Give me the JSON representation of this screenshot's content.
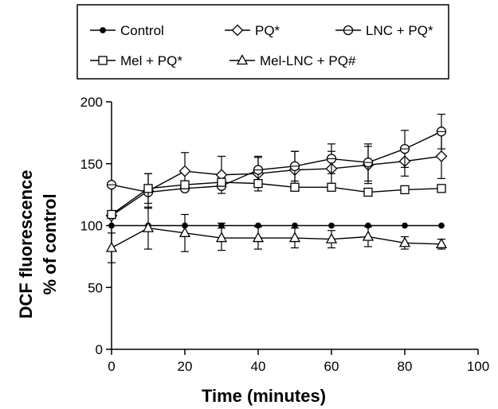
{
  "chart_data": {
    "type": "line",
    "title": "",
    "xlabel": "Time (minutes)",
    "ylabel": [
      "DCF fluorescence",
      "% of control"
    ],
    "xlim": [
      0,
      100
    ],
    "ylim": [
      0,
      200
    ],
    "xticks": [
      0,
      20,
      40,
      60,
      80,
      100
    ],
    "yticks": [
      0,
      50,
      100,
      150,
      200
    ],
    "grid": false,
    "legend_position": "top",
    "x": [
      0,
      10,
      20,
      30,
      40,
      50,
      60,
      70,
      80,
      90
    ],
    "series": [
      {
        "name": "Control",
        "marker": "filled-circle",
        "values": [
          100,
          100,
          100,
          100,
          100,
          100,
          100,
          100,
          100,
          100
        ],
        "errors": [
          0,
          0,
          0,
          2,
          0,
          0,
          0,
          0,
          0,
          0
        ]
      },
      {
        "name": "PQ*",
        "marker": "diamond",
        "values": [
          108,
          128,
          144,
          141,
          142,
          145,
          146,
          149,
          152,
          156
        ],
        "errors": [
          0,
          14,
          15,
          15,
          14,
          15,
          14,
          15,
          12,
          18
        ]
      },
      {
        "name": "LNC + PQ*",
        "marker": "circle",
        "values": [
          133,
          127,
          130,
          132,
          145,
          148,
          154,
          151,
          162,
          176
        ],
        "errors": [
          0,
          0,
          0,
          0,
          10,
          12,
          12,
          15,
          15,
          14
        ]
      },
      {
        "name": "Mel + PQ*",
        "marker": "square",
        "values": [
          109,
          130,
          133,
          135,
          134,
          131,
          131,
          127,
          129,
          130
        ],
        "errors": [
          0,
          12,
          0,
          0,
          0,
          0,
          0,
          0,
          0,
          0
        ]
      },
      {
        "name": "Mel-LNC + PQ#",
        "marker": "triangle",
        "values": [
          82,
          98,
          94,
          90,
          90,
          90,
          89,
          91,
          86,
          85
        ],
        "errors": [
          12,
          17,
          15,
          10,
          9,
          8,
          7,
          8,
          5,
          4
        ]
      }
    ]
  }
}
